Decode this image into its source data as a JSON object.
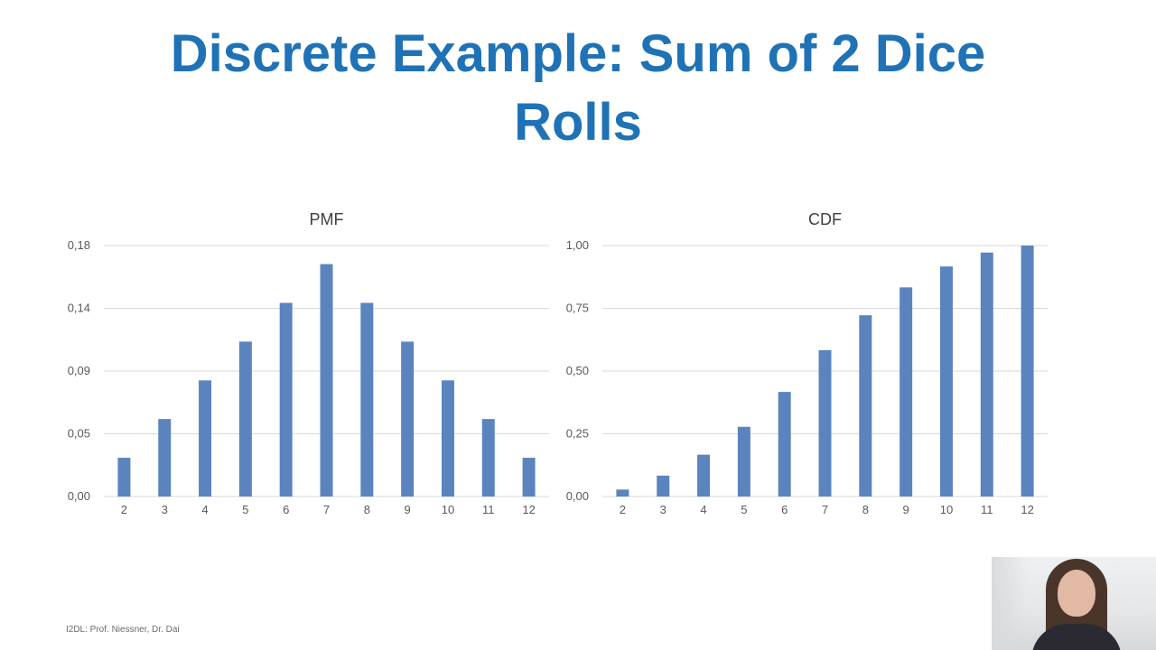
{
  "slide": {
    "title": "Discrete Example: Sum of 2 Dice Rolls",
    "footer": "I2DL: Prof. Niessner, Dr. Dai"
  },
  "colors": {
    "title": "#1f72b5",
    "bar": "#5b84bf",
    "grid": "#d9d9d9",
    "tick_text": "#595959"
  },
  "chart_data": [
    {
      "type": "bar",
      "title": "PMF",
      "xlabel": "",
      "ylabel": "",
      "categories": [
        "2",
        "3",
        "4",
        "5",
        "6",
        "7",
        "8",
        "9",
        "10",
        "11",
        "12"
      ],
      "values": [
        0.0278,
        0.0556,
        0.0833,
        0.1111,
        0.1389,
        0.1667,
        0.1389,
        0.1111,
        0.0833,
        0.0556,
        0.0278
      ],
      "ylim": [
        0,
        0.18
      ],
      "y_ticks": [
        "0,00",
        "0,05",
        "0,09",
        "0,14",
        "0,18"
      ],
      "grid": true,
      "legend": "none"
    },
    {
      "type": "bar",
      "title": "CDF",
      "xlabel": "",
      "ylabel": "",
      "categories": [
        "2",
        "3",
        "4",
        "5",
        "6",
        "7",
        "8",
        "9",
        "10",
        "11",
        "12"
      ],
      "values": [
        0.0278,
        0.0833,
        0.1667,
        0.2778,
        0.4167,
        0.5833,
        0.7222,
        0.8333,
        0.9167,
        0.9722,
        1.0
      ],
      "ylim": [
        0,
        1.0
      ],
      "y_ticks": [
        "0,00",
        "0,25",
        "0,50",
        "0,75",
        "1,00"
      ],
      "grid": true,
      "legend": "none"
    }
  ]
}
